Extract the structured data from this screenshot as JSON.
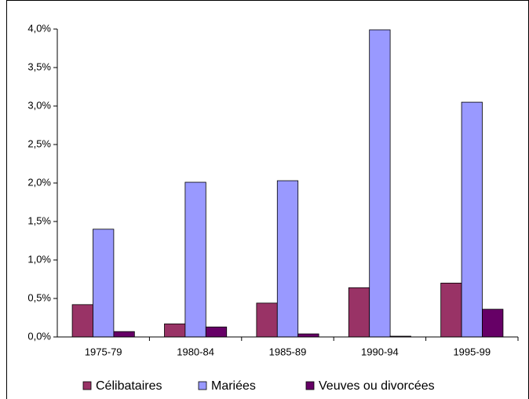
{
  "chart_data": {
    "type": "bar",
    "categories": [
      "1975-79",
      "1980-84",
      "1985-89",
      "1990-94",
      "1995-99"
    ],
    "series": [
      {
        "name": "Célibataires",
        "color": "#993366",
        "values": [
          0.42,
          0.17,
          0.44,
          0.64,
          0.7
        ]
      },
      {
        "name": "Mariées",
        "color": "#9999ff",
        "values": [
          1.4,
          2.01,
          2.03,
          3.99,
          3.05
        ]
      },
      {
        "name": "Veuves ou divorcées",
        "color": "#660066",
        "values": [
          0.07,
          0.13,
          0.04,
          0.01,
          0.36
        ]
      }
    ],
    "ylim": [
      0,
      4
    ],
    "yticks": [
      {
        "value": 0,
        "label": "0,0%"
      },
      {
        "value": 0.5,
        "label": "0,5%"
      },
      {
        "value": 1,
        "label": "1,0%"
      },
      {
        "value": 1.5,
        "label": "1,5%"
      },
      {
        "value": 2,
        "label": "2,0%"
      },
      {
        "value": 2.5,
        "label": "2,5%"
      },
      {
        "value": 3,
        "label": "3,0%"
      },
      {
        "value": 3.5,
        "label": "3,5%"
      },
      {
        "value": 4,
        "label": "4,0%"
      }
    ],
    "grid": false,
    "legend": "bottom"
  }
}
